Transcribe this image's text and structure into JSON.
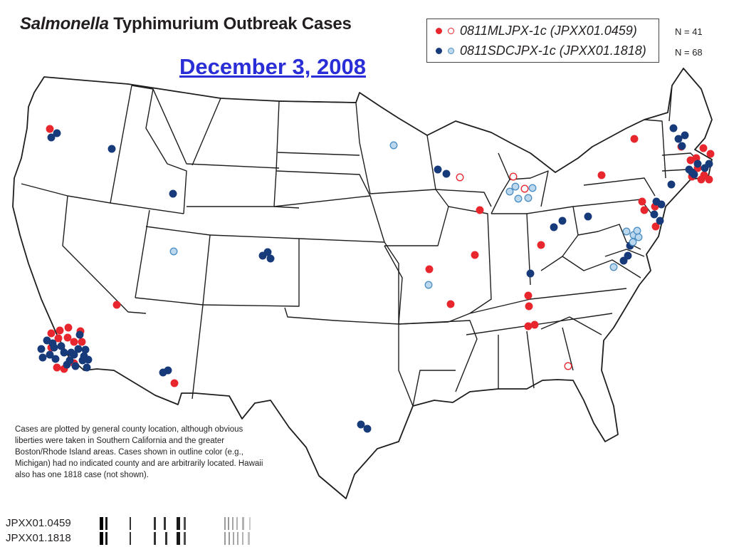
{
  "title": {
    "italic": "Salmonella",
    "rest": "Typhimurium Outbreak Cases"
  },
  "date": "December 3, 2008",
  "legend": [
    {
      "label": "0811MLJPX-1c (JPXX01.0459)",
      "count": "N = 41",
      "color": "#e8262d"
    },
    {
      "label": "0811SDCJPX-1c (JPXX01.1818)",
      "count": "N = 68",
      "color": "#173a7a",
      "outline_fill": "#bcd8ee",
      "outline_stroke": "#4d8fc2"
    }
  ],
  "note": "Cases are plotted by general county location, although obvious liberties were taken in Southern California and the greater Boston/Rhode Island areas. Cases shown in outline color (e.g., Michigan) had no indicated county and are arbitrarily located. Hawaii also has one 1818 case (not shown).",
  "pfge": [
    "JPXX01.0459",
    "JPXX01.1818"
  ],
  "colors": {
    "red": "#e8262d",
    "navy": "#173a7a",
    "light_fill": "#bcd8ee",
    "light_stroke": "#4d8fc2"
  }
}
